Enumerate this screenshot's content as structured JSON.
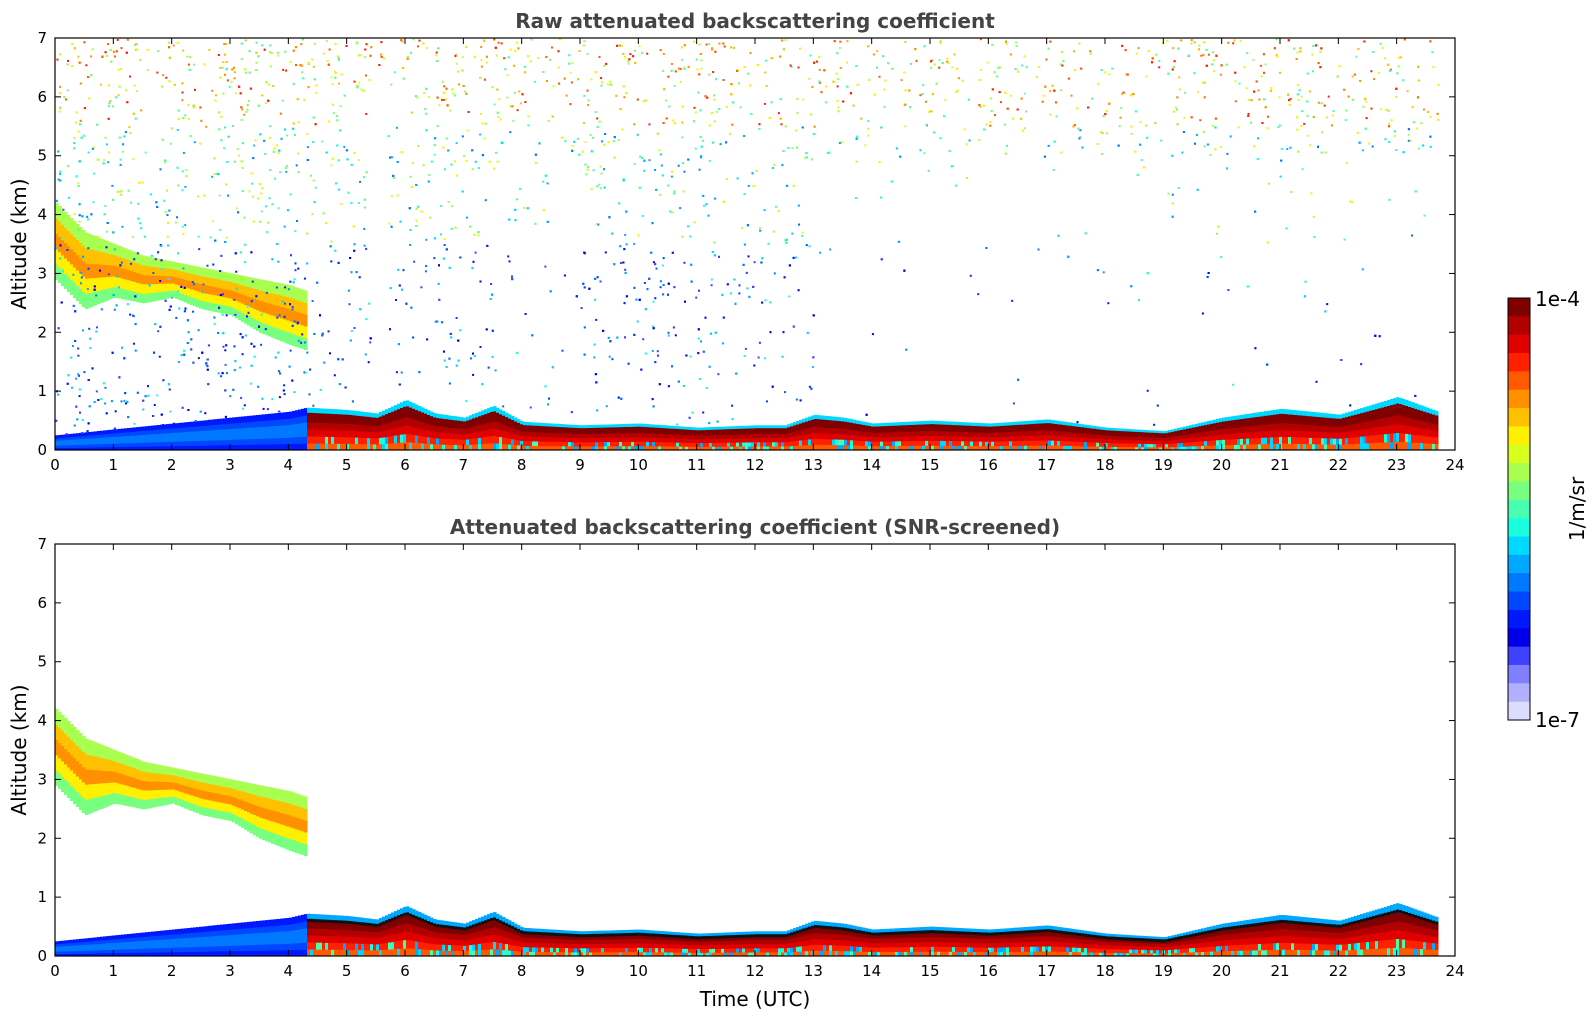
{
  "chart_data": [
    {
      "type": "heatmap",
      "title": "Raw attenuated backscattering coefficient",
      "xlabel": "",
      "ylabel": "Altitude (km)",
      "xlim": [
        0,
        24
      ],
      "ylim": [
        0,
        7
      ],
      "x_ticks": [
        0,
        1,
        2,
        3,
        4,
        5,
        6,
        7,
        8,
        9,
        10,
        11,
        12,
        13,
        14,
        15,
        16,
        17,
        18,
        19,
        20,
        21,
        22,
        23,
        24
      ],
      "y_ticks": [
        0,
        1,
        2,
        3,
        4,
        5,
        6,
        7
      ],
      "data_end_hour": 23.7,
      "cloud_layer": {
        "description_source": "upper cloud 0-4.3 UTC",
        "x": [
          0,
          0.5,
          1.0,
          1.5,
          2.0,
          2.5,
          3.0,
          3.5,
          4.0,
          4.3
        ],
        "bottom_km": [
          2.9,
          2.4,
          2.6,
          2.5,
          2.6,
          2.4,
          2.3,
          2.0,
          1.8,
          1.7
        ],
        "top_km": [
          4.2,
          3.7,
          3.5,
          3.3,
          3.2,
          3.1,
          3.0,
          2.9,
          2.8,
          2.7
        ]
      },
      "boundary_layer_top_km": {
        "x": [
          0,
          1,
          2,
          3,
          4,
          4.3,
          5,
          5.5,
          6,
          6.5,
          7,
          7.5,
          8,
          9,
          10,
          11,
          12,
          12.5,
          13,
          13.5,
          14,
          15,
          16,
          17,
          18,
          19,
          20,
          21,
          22,
          23,
          23.7
        ],
        "y": [
          0.25,
          0.35,
          0.45,
          0.55,
          0.65,
          0.72,
          0.68,
          0.62,
          0.85,
          0.62,
          0.55,
          0.75,
          0.48,
          0.42,
          0.45,
          0.38,
          0.42,
          0.42,
          0.6,
          0.55,
          0.45,
          0.5,
          0.45,
          0.52,
          0.38,
          0.32,
          0.55,
          0.7,
          0.6,
          0.9,
          0.65
        ]
      },
      "colorbar": {
        "min_label": "1e-7",
        "max_label": "1e-4",
        "label": "1/m/sr",
        "scale": "log"
      }
    },
    {
      "type": "heatmap",
      "title": "Attenuated backscattering coefficient (SNR-screened)",
      "xlabel": "Time (UTC)",
      "ylabel": "Altitude (km)",
      "xlim": [
        0,
        24
      ],
      "ylim": [
        0,
        7
      ],
      "x_ticks": [
        0,
        1,
        2,
        3,
        4,
        5,
        6,
        7,
        8,
        9,
        10,
        11,
        12,
        13,
        14,
        15,
        16,
        17,
        18,
        19,
        20,
        21,
        22,
        23,
        24
      ],
      "y_ticks": [
        0,
        1,
        2,
        3,
        4,
        5,
        6,
        7
      ],
      "data_end_hour": 23.7,
      "screened": true
    }
  ],
  "colorbar": {
    "top_label": "1e-4",
    "bottom_label": "1e-7",
    "unit_label": "1/m/sr",
    "colors": [
      "#800000",
      "#b20000",
      "#e00000",
      "#ff2000",
      "#ff5a00",
      "#ff9000",
      "#ffc000",
      "#ffef00",
      "#d9ff1f",
      "#a8ff50",
      "#78ff80",
      "#48ffb0",
      "#18ffe0",
      "#00d8ff",
      "#00a8ff",
      "#0078ff",
      "#0048ff",
      "#0018ff",
      "#0000e8",
      "#4040ff",
      "#8080ff",
      "#b0b0ff",
      "#dcdcff"
    ]
  }
}
